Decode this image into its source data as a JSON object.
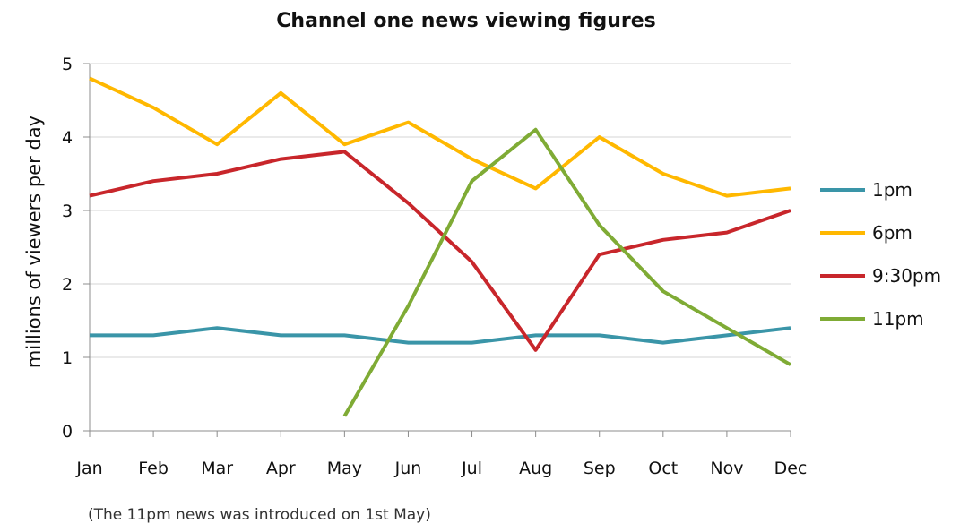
{
  "chart_data": {
    "type": "line",
    "title": "Channel one news viewing figures",
    "xlabel": "",
    "ylabel": "millions of viewers per day",
    "categories": [
      "Jan",
      "Feb",
      "Mar",
      "Apr",
      "May",
      "Jun",
      "Jul",
      "Aug",
      "Sep",
      "Oct",
      "Nov",
      "Dec"
    ],
    "ylim": [
      0,
      5
    ],
    "yticks": [
      "0",
      "1",
      "2",
      "3",
      "4",
      "5"
    ],
    "grid": true,
    "legend_position": "right",
    "series": [
      {
        "name": "1pm",
        "color": "#3a95a8",
        "values": [
          1.3,
          1.3,
          1.4,
          1.3,
          1.3,
          1.2,
          1.2,
          1.3,
          1.3,
          1.2,
          1.3,
          1.4
        ]
      },
      {
        "name": "6pm",
        "color": "#ffb800",
        "values": [
          4.8,
          4.4,
          3.9,
          4.6,
          3.9,
          4.2,
          3.7,
          3.3,
          4.0,
          3.5,
          3.2,
          3.3
        ]
      },
      {
        "name": "9:30pm",
        "color": "#c8262b",
        "values": [
          3.2,
          3.4,
          3.5,
          3.7,
          3.8,
          3.1,
          2.3,
          1.1,
          2.4,
          2.6,
          2.7,
          3.0
        ]
      },
      {
        "name": "11pm",
        "color": "#7fab35",
        "values": [
          null,
          null,
          null,
          null,
          0.2,
          1.7,
          3.4,
          4.1,
          2.8,
          1.9,
          1.4,
          0.9
        ]
      }
    ],
    "annotation": "(The 11pm news was introduced on 1st May)"
  }
}
